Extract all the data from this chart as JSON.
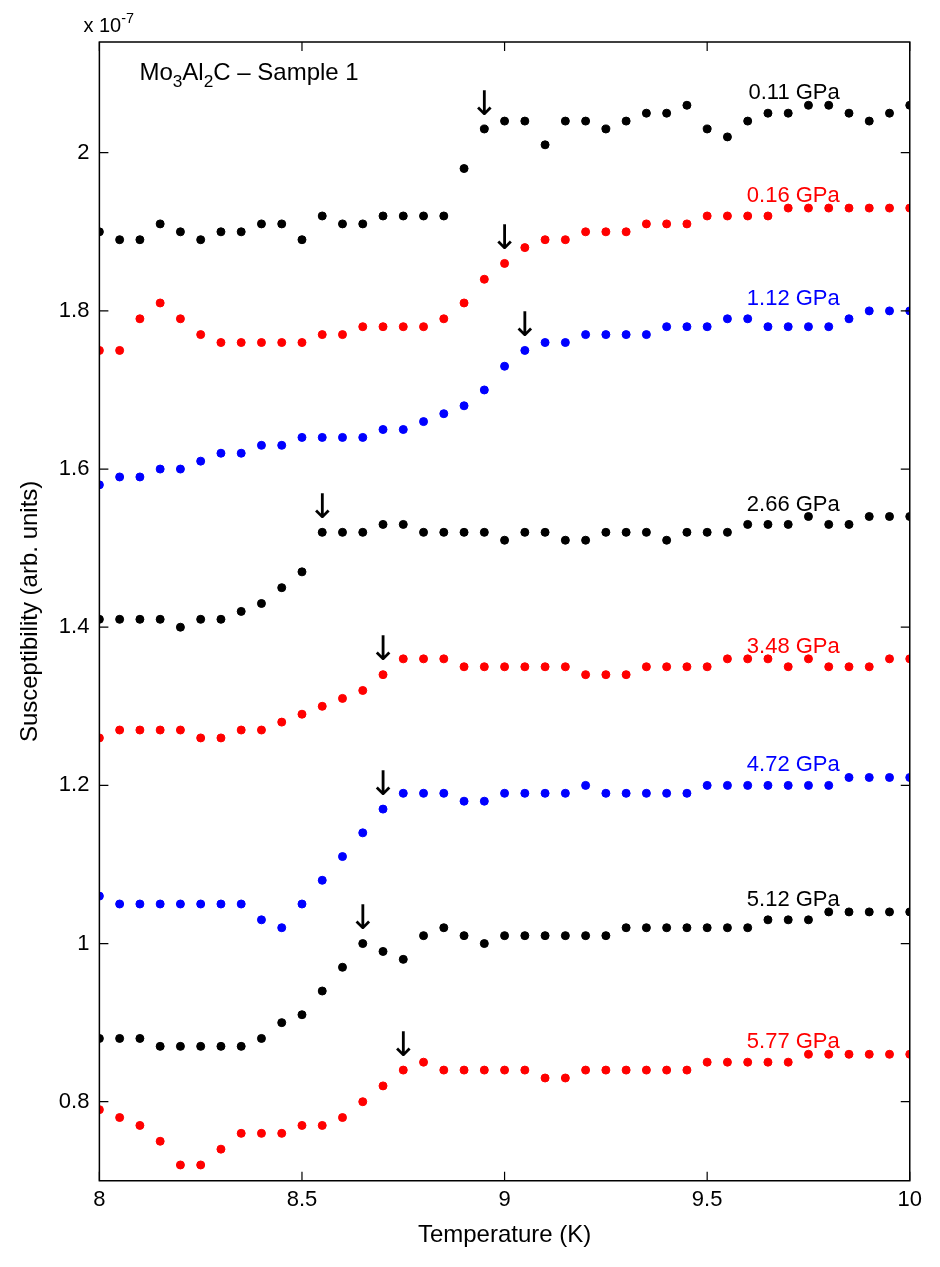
{
  "chart_data": {
    "type": "scatter",
    "title": "Mo$_{3}$Al$_{2}$C – Sample 1",
    "xlabel": "Temperature (K)",
    "ylabel": "Susceptibility (arb. units)",
    "marker": "circle",
    "grid": false,
    "legend": "right",
    "xlim": [
      8,
      10
    ],
    "ylim": [
      0.7,
      2.14
    ],
    "xticks": [
      8,
      8.5,
      9,
      9.5,
      10
    ],
    "yticks": [
      0.8,
      1,
      1.2,
      1.4,
      1.6,
      1.8,
      2
    ],
    "x": [
      8,
      8.05,
      8.1,
      8.15,
      8.2,
      8.25,
      8.3,
      8.35,
      8.4,
      8.45,
      8.5,
      8.55,
      8.6,
      8.65,
      8.7,
      8.75,
      8.8,
      8.85,
      8.9,
      8.95,
      9,
      9.05,
      9.1,
      9.15,
      9.2,
      9.25,
      9.3,
      9.35,
      9.4,
      9.45,
      9.5,
      9.55,
      9.6,
      9.65,
      9.7,
      9.75,
      9.8,
      9.85,
      9.9,
      9.95,
      10
    ],
    "series": [
      {
        "name": "0.11 GPa",
        "color": "#000000",
        "values": [
          1.9,
          1.89,
          1.89,
          1.91,
          1.9,
          1.89,
          1.9,
          1.9,
          1.91,
          1.91,
          1.89,
          1.92,
          1.91,
          1.91,
          1.92,
          1.92,
          1.92,
          1.92,
          1.98,
          2.03,
          2.04,
          2.04,
          2.01,
          2.04,
          2.04,
          2.03,
          2.04,
          2.05,
          2.05,
          2.06,
          2.03,
          2.02,
          2.04,
          2.05,
          2.05,
          2.06,
          2.06,
          2.05,
          2.04,
          2.05,
          2.06
        ]
      },
      {
        "name": "0.16 GPa",
        "color": "#ff0000",
        "values": [
          1.75,
          1.75,
          1.79,
          1.81,
          1.79,
          1.77,
          1.76,
          1.76,
          1.76,
          1.76,
          1.76,
          1.77,
          1.77,
          1.78,
          1.78,
          1.78,
          1.78,
          1.79,
          1.81,
          1.84,
          1.86,
          1.88,
          1.89,
          1.89,
          1.9,
          1.9,
          1.9,
          1.91,
          1.91,
          1.91,
          1.92,
          1.92,
          1.92,
          1.92,
          1.93,
          1.93,
          1.93,
          1.93,
          1.93,
          1.93,
          1.93
        ]
      },
      {
        "name": "1.12 GPa",
        "color": "#0000ff",
        "values": [
          1.58,
          1.59,
          1.59,
          1.6,
          1.6,
          1.61,
          1.62,
          1.62,
          1.63,
          1.63,
          1.64,
          1.64,
          1.64,
          1.64,
          1.65,
          1.65,
          1.66,
          1.67,
          1.68,
          1.7,
          1.73,
          1.75,
          1.76,
          1.76,
          1.77,
          1.77,
          1.77,
          1.77,
          1.78,
          1.78,
          1.78,
          1.79,
          1.79,
          1.78,
          1.78,
          1.78,
          1.78,
          1.79,
          1.8,
          1.8,
          1.8
        ]
      },
      {
        "name": "2.66 GPa",
        "color": "#000000",
        "values": [
          1.41,
          1.41,
          1.41,
          1.41,
          1.4,
          1.41,
          1.41,
          1.42,
          1.43,
          1.45,
          1.47,
          1.52,
          1.52,
          1.52,
          1.53,
          1.53,
          1.52,
          1.52,
          1.52,
          1.52,
          1.51,
          1.52,
          1.52,
          1.51,
          1.51,
          1.52,
          1.52,
          1.52,
          1.51,
          1.52,
          1.52,
          1.52,
          1.53,
          1.53,
          1.53,
          1.54,
          1.53,
          1.53,
          1.54,
          1.54,
          1.54
        ]
      },
      {
        "name": "3.48 GPa",
        "color": "#ff0000",
        "values": [
          1.26,
          1.27,
          1.27,
          1.27,
          1.27,
          1.26,
          1.26,
          1.27,
          1.27,
          1.28,
          1.29,
          1.3,
          1.31,
          1.32,
          1.34,
          1.36,
          1.36,
          1.36,
          1.35,
          1.35,
          1.35,
          1.35,
          1.35,
          1.35,
          1.34,
          1.34,
          1.34,
          1.35,
          1.35,
          1.35,
          1.35,
          1.36,
          1.36,
          1.36,
          1.35,
          1.36,
          1.35,
          1.35,
          1.35,
          1.36,
          1.36
        ]
      },
      {
        "name": "4.72 GPa",
        "color": "#0000ff",
        "values": [
          1.06,
          1.05,
          1.05,
          1.05,
          1.05,
          1.05,
          1.05,
          1.05,
          1.03,
          1.02,
          1.05,
          1.08,
          1.11,
          1.14,
          1.17,
          1.19,
          1.19,
          1.19,
          1.18,
          1.18,
          1.19,
          1.19,
          1.19,
          1.19,
          1.2,
          1.19,
          1.19,
          1.19,
          1.19,
          1.19,
          1.2,
          1.2,
          1.2,
          1.2,
          1.2,
          1.2,
          1.2,
          1.21,
          1.21,
          1.21,
          1.21
        ]
      },
      {
        "name": "5.12 GPa",
        "color": "#000000",
        "values": [
          0.88,
          0.88,
          0.88,
          0.87,
          0.87,
          0.87,
          0.87,
          0.87,
          0.88,
          0.9,
          0.91,
          0.94,
          0.97,
          1,
          0.99,
          0.98,
          1.01,
          1.02,
          1.01,
          1,
          1.01,
          1.01,
          1.01,
          1.01,
          1.01,
          1.01,
          1.02,
          1.02,
          1.02,
          1.02,
          1.02,
          1.02,
          1.02,
          1.03,
          1.03,
          1.03,
          1.04,
          1.04,
          1.04,
          1.04,
          1.04
        ]
      },
      {
        "name": "5.77 GPa",
        "color": "#ff0000",
        "values": [
          0.79,
          0.78,
          0.77,
          0.75,
          0.72,
          0.72,
          0.74,
          0.76,
          0.76,
          0.76,
          0.77,
          0.77,
          0.78,
          0.8,
          0.82,
          0.84,
          0.85,
          0.84,
          0.84,
          0.84,
          0.84,
          0.84,
          0.83,
          0.83,
          0.84,
          0.84,
          0.84,
          0.84,
          0.84,
          0.84,
          0.85,
          0.85,
          0.85,
          0.85,
          0.85,
          0.86,
          0.86,
          0.86,
          0.86,
          0.86,
          0.86
        ]
      }
    ],
    "annotations": [
      "x 10$^{-7}$",
      {
        "text": "↓",
        "x": 8.95,
        "y": 2.03
      },
      {
        "text": "↓",
        "x": 9,
        "y": 1.86
      },
      {
        "text": "↓",
        "x": 9.05,
        "y": 1.75
      },
      {
        "text": "↓",
        "x": 8.55,
        "y": 1.52
      },
      {
        "text": "↓",
        "x": 8.7,
        "y": 1.34
      },
      {
        "text": "↓",
        "x": 8.7,
        "y": 1.17
      },
      {
        "text": "↓",
        "x": 8.65,
        "y": 1
      },
      {
        "text": "↓",
        "x": 8.75,
        "y": 0.84
      }
    ]
  }
}
